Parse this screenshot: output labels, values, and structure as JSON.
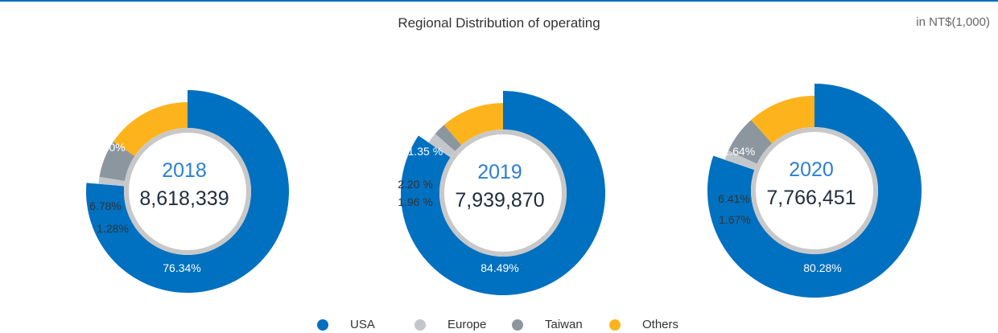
{
  "header": {
    "title": "Regional Distribution of operating",
    "unit": "in NT$(1,000)"
  },
  "chart_data": {
    "type": "pie",
    "series_names": [
      "USA",
      "Europe",
      "Taiwan",
      "Others"
    ],
    "colors": {
      "USA": "#0070c0",
      "Europe": "#c3c7cc",
      "Taiwan": "#8c969f",
      "Others": "#fdb41c"
    },
    "charts": [
      {
        "year": "2018",
        "total": "8,618,339",
        "values": [
          76.34,
          1.28,
          6.78,
          15.6
        ],
        "labels": [
          "76.34%",
          "1.28%",
          "6.78%",
          "15.60%"
        ]
      },
      {
        "year": "2019",
        "total": "7,939,870",
        "values": [
          84.49,
          1.96,
          2.2,
          11.35
        ],
        "labels": [
          "84.49%",
          "1.96 %",
          "2.20 %",
          "11.35 %"
        ]
      },
      {
        "year": "2020",
        "total": "7,766,451",
        "values": [
          80.28,
          1.67,
          6.41,
          11.64
        ],
        "labels": [
          "80.28%",
          "1.67%",
          "6.41%",
          "11.64%"
        ]
      }
    ],
    "legend": [
      "USA",
      "Europe",
      "Taiwan",
      "Others"
    ],
    "legend_position": "bottom"
  }
}
